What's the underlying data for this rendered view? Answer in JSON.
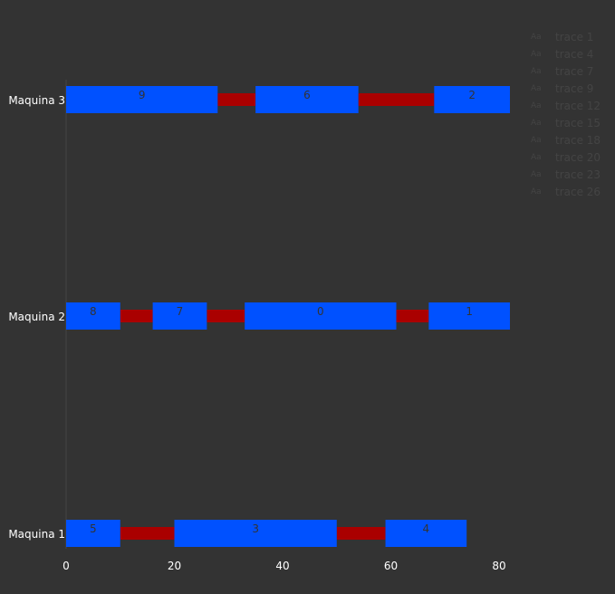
{
  "chart_data": {
    "type": "gantt",
    "title": "",
    "xlabel": "",
    "ylabel": "",
    "xlim": [
      0,
      82
    ],
    "x_ticks": [
      0,
      20,
      40,
      60,
      80
    ],
    "grid": false,
    "legend_position": "top-right",
    "colors": {
      "job": "#0051ff",
      "idle": "#aa0000",
      "background": "#333333",
      "tick_text": "#ffffff",
      "job_label": "#333333"
    },
    "machines": [
      "Maquina 1",
      "Maquina 2",
      "Maquina 3"
    ],
    "jobs": [
      {
        "machine": "Maquina 3",
        "label": "9",
        "start": 0,
        "end": 28
      },
      {
        "machine": "Maquina 3",
        "label": "6",
        "start": 35,
        "end": 54
      },
      {
        "machine": "Maquina 3",
        "label": "2",
        "start": 68,
        "end": 82
      },
      {
        "machine": "Maquina 2",
        "label": "8",
        "start": 0,
        "end": 10
      },
      {
        "machine": "Maquina 2",
        "label": "7",
        "start": 16,
        "end": 26
      },
      {
        "machine": "Maquina 2",
        "label": "0",
        "start": 33,
        "end": 61
      },
      {
        "machine": "Maquina 2",
        "label": "1",
        "start": 67,
        "end": 82
      },
      {
        "machine": "Maquina 1",
        "label": "5",
        "start": 0,
        "end": 10
      },
      {
        "machine": "Maquina 1",
        "label": "3",
        "start": 20,
        "end": 50
      },
      {
        "machine": "Maquina 1",
        "label": "4",
        "start": 59,
        "end": 74
      }
    ],
    "gaps": [
      {
        "machine": "Maquina 3",
        "start": 28,
        "end": 35
      },
      {
        "machine": "Maquina 3",
        "start": 54,
        "end": 68
      },
      {
        "machine": "Maquina 2",
        "start": 10,
        "end": 16
      },
      {
        "machine": "Maquina 2",
        "start": 26,
        "end": 33
      },
      {
        "machine": "Maquina 2",
        "start": 61,
        "end": 67
      },
      {
        "machine": "Maquina 1",
        "start": 10,
        "end": 20
      },
      {
        "machine": "Maquina 1",
        "start": 50,
        "end": 59
      }
    ],
    "legend": {
      "symbol": "Aa",
      "entries": [
        "trace 1",
        "trace 4",
        "trace 7",
        "trace 9",
        "trace 12",
        "trace 15",
        "trace 18",
        "trace 20",
        "trace 23",
        "trace 26"
      ]
    }
  }
}
